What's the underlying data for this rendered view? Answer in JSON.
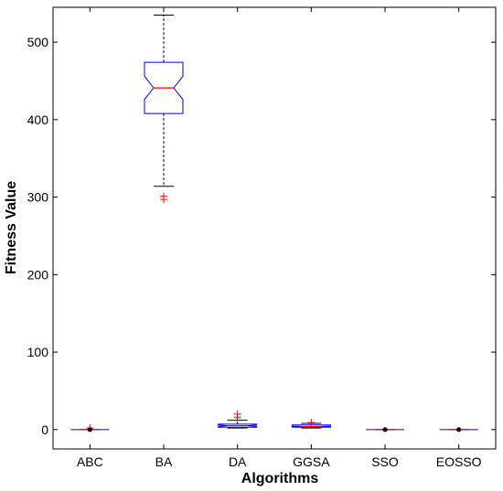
{
  "chart_data": {
    "type": "boxplot",
    "title": "",
    "xlabel": "Algorithms",
    "ylabel": "Fitness Value",
    "ylim": [
      -25,
      545
    ],
    "yticks": [
      0,
      100,
      200,
      300,
      400,
      500
    ],
    "grid": false,
    "legend": "none",
    "categories": [
      "ABC",
      "BA",
      "DA",
      "GGSA",
      "SSO",
      "EOSSO"
    ],
    "boxes": [
      {
        "category": "ABC",
        "whisker_low": 0,
        "q1": 0,
        "median": 0,
        "q3": 0,
        "whisker_high": 0,
        "notch_low": 0,
        "notch_high": 0,
        "outliers": [
          2
        ],
        "mean_marker": 0
      },
      {
        "category": "BA",
        "whisker_low": 314,
        "q1": 408,
        "median": 441,
        "q3": 474,
        "whisker_high": 535,
        "notch_low": 426,
        "notch_high": 456,
        "outliers": [
          301,
          297
        ],
        "mean_marker": null
      },
      {
        "category": "DA",
        "whisker_low": 2,
        "q1": 3,
        "median": 5,
        "q3": 7,
        "whisker_high": 12,
        "notch_low": 4,
        "notch_high": 6,
        "outliers": [
          16,
          20
        ],
        "mean_marker": null
      },
      {
        "category": "GGSA",
        "whisker_low": 2,
        "q1": 3,
        "median": 4,
        "q3": 6,
        "whisker_high": 8,
        "notch_low": 3.5,
        "notch_high": 4.5,
        "outliers": [
          9
        ],
        "mean_marker": null
      },
      {
        "category": "SSO",
        "whisker_low": 0,
        "q1": 0,
        "median": 0,
        "q3": 0,
        "whisker_high": 0,
        "notch_low": 0,
        "notch_high": 0,
        "outliers": [],
        "mean_marker": 0
      },
      {
        "category": "EOSSO",
        "whisker_low": 0,
        "q1": 0,
        "median": 0,
        "q3": 0,
        "whisker_high": 0,
        "notch_low": 0,
        "notch_high": 0,
        "outliers": [],
        "mean_marker": 0
      }
    ],
    "colors": {
      "box": "#0000ff",
      "median": "#ff0000",
      "whisker": "#000000",
      "outlier": "#ff0000",
      "marker": "#000000",
      "axis": "#000000"
    }
  }
}
